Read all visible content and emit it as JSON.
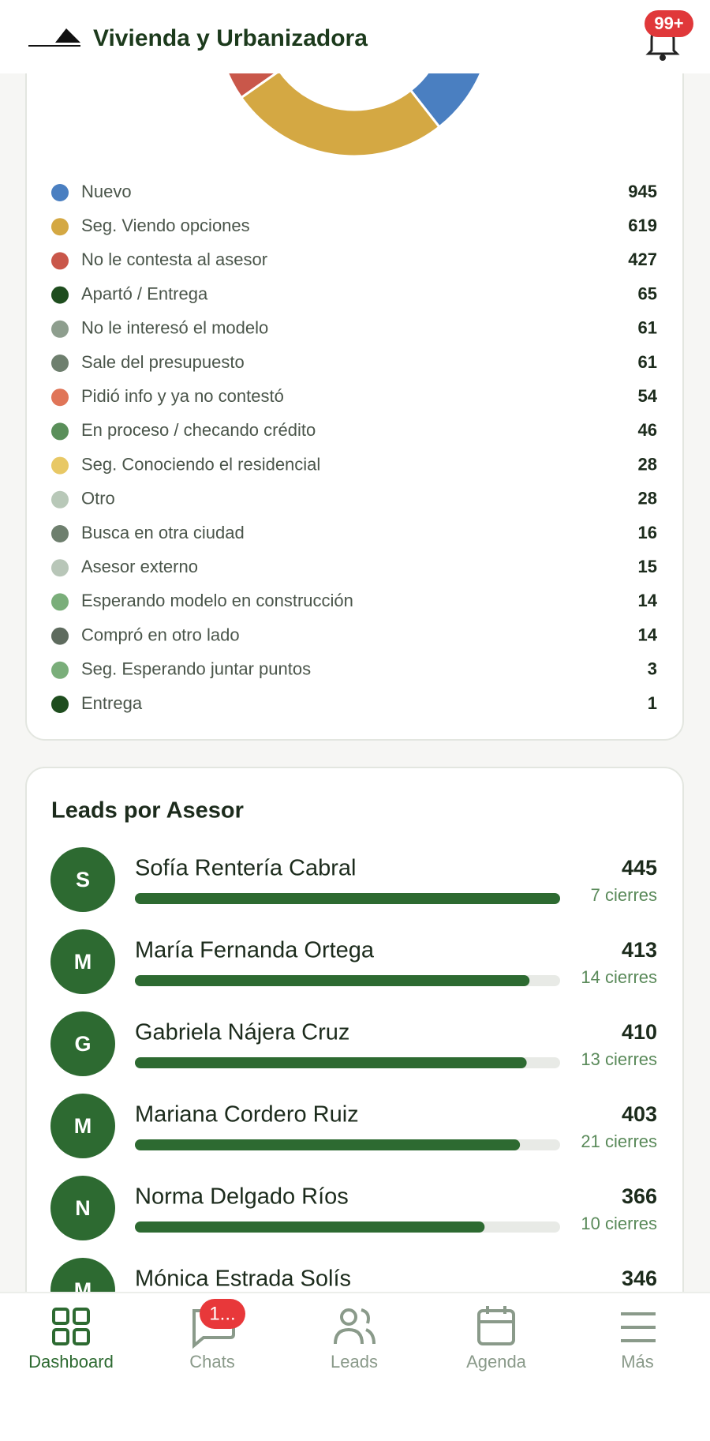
{
  "header": {
    "title": "Vivienda y Urbanizadora",
    "notifications": "99+"
  },
  "status_chart": {
    "type": "donut",
    "items": [
      {
        "label": "Nuevo",
        "value": 945,
        "color": "#4a7fc1"
      },
      {
        "label": "Seg. Viendo opciones",
        "value": 619,
        "color": "#d4a843"
      },
      {
        "label": "No le contesta al asesor",
        "value": 427,
        "color": "#c9574a"
      },
      {
        "label": "Apartó / Entrega",
        "value": 65,
        "color": "#1e4d1e"
      },
      {
        "label": "No le interesó el modelo",
        "value": 61,
        "color": "#8e9e8e"
      },
      {
        "label": "Sale del presupuesto",
        "value": 61,
        "color": "#6e7f6e"
      },
      {
        "label": "Pidió info y ya no contestó",
        "value": 54,
        "color": "#e07558"
      },
      {
        "label": "En proceso / checando crédito",
        "value": 46,
        "color": "#5a8f5a"
      },
      {
        "label": "Seg. Conociendo el residencial",
        "value": 28,
        "color": "#e8c865"
      },
      {
        "label": "Otro",
        "value": 28,
        "color": "#b8c8b8"
      },
      {
        "label": "Busca en otra ciudad",
        "value": 16,
        "color": "#6e7f6e"
      },
      {
        "label": "Asesor externo",
        "value": 15,
        "color": "#b8c6b8"
      },
      {
        "label": "Esperando modelo en construcción",
        "value": 14,
        "color": "#7aae7a"
      },
      {
        "label": "Compró en otro lado",
        "value": 14,
        "color": "#5e6b5e"
      },
      {
        "label": "Seg. Esperando juntar puntos",
        "value": 3,
        "color": "#7aae7a"
      },
      {
        "label": "Entrega",
        "value": 1,
        "color": "#1e4d1e"
      }
    ]
  },
  "leads_by_advisor": {
    "title": "Leads por Asesor",
    "advisors": [
      {
        "initial": "S",
        "name": "Sofía Rentería Cabral",
        "leads": 445,
        "closings": "7 cierres"
      },
      {
        "initial": "M",
        "name": "María Fernanda Ortega",
        "leads": 413,
        "closings": "14 cierres"
      },
      {
        "initial": "G",
        "name": "Gabriela Nájera Cruz",
        "leads": 410,
        "closings": "13 cierres"
      },
      {
        "initial": "M",
        "name": "Mariana Cordero Ruiz",
        "leads": 403,
        "closings": "21 cierres"
      },
      {
        "initial": "N",
        "name": "Norma Delgado Ríos",
        "leads": 366,
        "closings": "10 cierres"
      },
      {
        "initial": "M",
        "name": "Mónica Estrada Solís",
        "leads": 346
      }
    ]
  },
  "nav": {
    "items": [
      {
        "label": "Dashboard"
      },
      {
        "label": "Chats"
      },
      {
        "label": "Leads"
      },
      {
        "label": "Agenda"
      },
      {
        "label": "Más"
      }
    ],
    "chats_badge": "1..."
  }
}
